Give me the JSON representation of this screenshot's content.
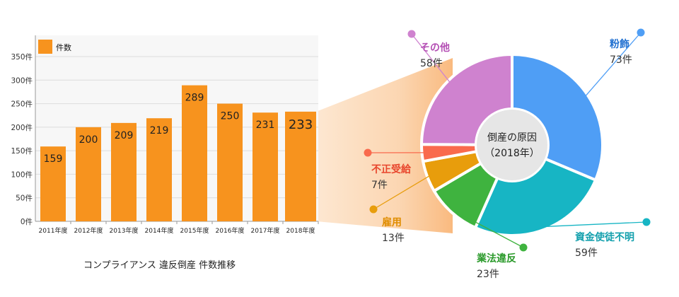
{
  "chart_data": [
    {
      "type": "bar",
      "caption": "コンプライアンス 違反倒産 件数推移",
      "legend": "件数",
      "legend_position": "top-left",
      "color": "#f7931e",
      "categories": [
        "2011年度",
        "2012年度",
        "2013年度",
        "2014年度",
        "2015年度",
        "2016年度",
        "2017年度",
        "2018年度"
      ],
      "values": [
        159,
        200,
        209,
        219,
        289,
        250,
        231,
        233
      ],
      "ylim": [
        0,
        350
      ],
      "yticks": [
        "0件",
        "50件",
        "100件",
        "150件",
        "200件",
        "250件",
        "300件",
        "350件"
      ],
      "grid": true
    },
    {
      "type": "pie",
      "center_label": [
        "倒産の原因",
        "（2018年）"
      ],
      "slices": [
        {
          "label": "粉飾",
          "value": 73,
          "value_label": "73件",
          "color": "#4f9ef5",
          "label_color": "#1f6fd0"
        },
        {
          "label": "資金使徒不明",
          "value": 59,
          "value_label": "59件",
          "color": "#17b5c4",
          "label_color": "#13a0ad"
        },
        {
          "label": "業法違反",
          "value": 23,
          "value_label": "23件",
          "color": "#3fb33f",
          "label_color": "#2b9a2b"
        },
        {
          "label": "雇用",
          "value": 13,
          "value_label": "13件",
          "color": "#e89d0c",
          "label_color": "#e08d00"
        },
        {
          "label": "不正受給",
          "value": 7,
          "value_label": "7件",
          "color": "#f96a4d",
          "label_color": "#e8452c"
        },
        {
          "label": "その他",
          "value": 58,
          "value_label": "58件",
          "color": "#cf82cf",
          "label_color": "#b44fb4"
        }
      ]
    }
  ]
}
